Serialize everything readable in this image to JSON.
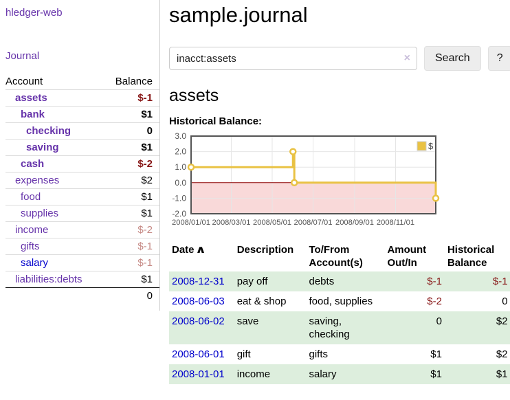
{
  "app": {
    "brand": "hledger-web"
  },
  "sidebar": {
    "journal_label": "Journal",
    "accounts_table": {
      "headers": {
        "account": "Account",
        "balance": "Balance"
      },
      "rows": [
        {
          "name": "assets",
          "depth": 1,
          "bold": true,
          "balance": "$-1",
          "balance_style": "neg-strong"
        },
        {
          "name": "bank",
          "depth": 2,
          "bold": true,
          "balance": "$1",
          "balance_style": "pos"
        },
        {
          "name": "checking",
          "depth": 3,
          "bold": true,
          "balance": "0",
          "balance_style": "pos"
        },
        {
          "name": "saving",
          "depth": 3,
          "bold": true,
          "balance": "$1",
          "balance_style": "pos"
        },
        {
          "name": "cash",
          "depth": 2,
          "bold": true,
          "balance": "$-2",
          "balance_style": "neg-strong"
        },
        {
          "name": "expenses",
          "depth": 1,
          "bold": false,
          "balance": "$2",
          "balance_style": "pos"
        },
        {
          "name": "food",
          "depth": 2,
          "bold": false,
          "balance": "$1",
          "balance_style": "pos"
        },
        {
          "name": "supplies",
          "depth": 2,
          "bold": false,
          "balance": "$1",
          "balance_style": "pos"
        },
        {
          "name": "income",
          "depth": 1,
          "bold": false,
          "balance": "$-2",
          "balance_style": "neg-faded"
        },
        {
          "name": "gifts",
          "depth": 2,
          "bold": false,
          "balance": "$-1",
          "balance_style": "neg-faded"
        },
        {
          "name": "salary",
          "depth": 2,
          "bold": false,
          "link_style": "blue",
          "balance": "$-1",
          "balance_style": "neg-faded"
        },
        {
          "name": "liabilities:debts",
          "depth": 1,
          "bold": false,
          "balance": "$1",
          "balance_style": "pos"
        }
      ],
      "total": "0"
    }
  },
  "header": {
    "title": "sample.journal"
  },
  "search": {
    "value": "inacct:assets",
    "clear_icon": "×",
    "button_label": "Search",
    "help_label": "?"
  },
  "account_view": {
    "title": "assets",
    "chart_label": "Historical Balance:"
  },
  "chart_data": {
    "type": "line",
    "step": true,
    "title": "Historical Balance:",
    "series": [
      {
        "name": "$",
        "color": "#e9c244",
        "points": [
          [
            "2008-01-01",
            1
          ],
          [
            "2008-06-01",
            2
          ],
          [
            "2008-06-03",
            0
          ],
          [
            "2008-12-31",
            -1
          ]
        ]
      }
    ],
    "x_range": [
      "2008-01-01",
      "2008-12-31"
    ],
    "x_ticks": [
      "2008/01/01",
      "2008/03/01",
      "2008/05/01",
      "2008/07/01",
      "2008/09/01",
      "2008/11/01"
    ],
    "y_ticks": [
      "3.0",
      "2.0",
      "1.0",
      "0.0",
      "-1.0",
      "-2.0"
    ],
    "ylim": [
      -2,
      3
    ],
    "grid": true,
    "legend_position": "top-right",
    "colors": {
      "negative_region": "#f9d9d9",
      "zero_line": "#8b0000",
      "grid_line": "#e6e6e6",
      "plot_border": "#545454",
      "axis_text": "#545454",
      "marker_fill": "#ffffff",
      "legend_box_border": "#cccccc"
    }
  },
  "register_table": {
    "headers": {
      "date": "Date",
      "sort_icon": "∧",
      "description": "Description",
      "accounts": "To/From Account(s)",
      "amount": "Amount Out/In",
      "balance": "Historical Balance"
    },
    "rows": [
      {
        "date": "2008-12-31",
        "description": "pay off",
        "accounts": "debts",
        "amount": "$-1",
        "amount_negative": true,
        "balance": "$-1",
        "balance_negative": true
      },
      {
        "date": "2008-06-03",
        "description": "eat & shop",
        "accounts": "food, supplies",
        "amount": "$-2",
        "amount_negative": true,
        "balance": "0",
        "balance_negative": false
      },
      {
        "date": "2008-06-02",
        "description": "save",
        "accounts": "saving, checking",
        "amount": "0",
        "amount_negative": false,
        "balance": "$2",
        "balance_negative": false
      },
      {
        "date": "2008-06-01",
        "description": "gift",
        "accounts": "gifts",
        "amount": "$1",
        "amount_negative": false,
        "balance": "$2",
        "balance_negative": false
      },
      {
        "date": "2008-01-01",
        "description": "income",
        "accounts": "salary",
        "amount": "$1",
        "amount_negative": false,
        "balance": "$1",
        "balance_negative": false
      }
    ]
  },
  "colors": {
    "link_purple": "#6633aa",
    "link_blue": "#0000cc",
    "negative_strong": "#871616",
    "negative_faded": "#c68a85",
    "row_stripe_green": "#ddeedd",
    "sidebar_divider": "#cccccc"
  }
}
